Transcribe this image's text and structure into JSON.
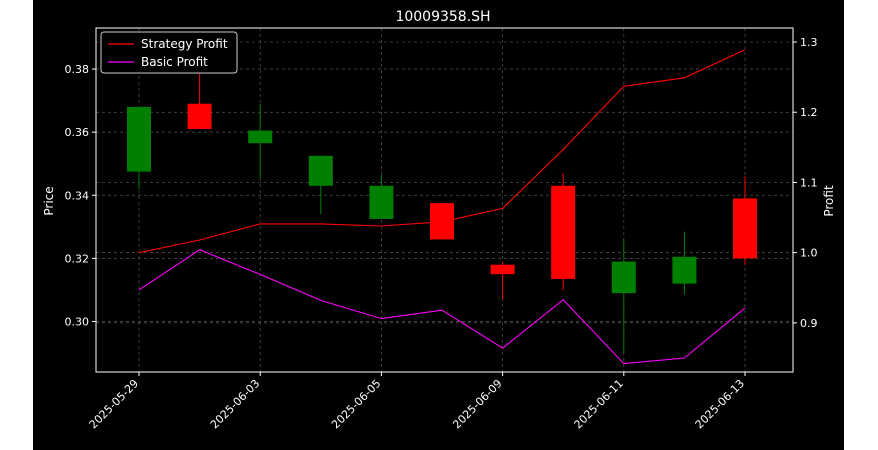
{
  "chart_data": {
    "type": "candlestick",
    "title": "10009358.SH",
    "xlabel": "",
    "ylabel": "Price",
    "y2label": "Profit",
    "ylim": [
      0.284,
      0.393
    ],
    "y2lim": [
      0.83,
      1.32
    ],
    "yticks": [
      0.3,
      0.32,
      0.34,
      0.36,
      0.38
    ],
    "y2ticks": [
      0.9,
      1.0,
      1.1,
      1.2,
      1.3
    ],
    "xticklabels": [
      "2025-05-29",
      "2025-06-03",
      "2025-06-05",
      "2025-06-09",
      "2025-06-11",
      "2025-06-13"
    ],
    "xtick_indices": [
      0,
      2,
      4,
      6,
      8,
      10
    ],
    "grid": true,
    "legend_position": "top-left",
    "candles": [
      {
        "open": 0.368,
        "close": 0.3475,
        "high": 0.368,
        "low": 0.342
      },
      {
        "open": 0.361,
        "close": 0.369,
        "high": 0.379,
        "low": 0.361
      },
      {
        "open": 0.3605,
        "close": 0.3565,
        "high": 0.369,
        "low": 0.3455
      },
      {
        "open": 0.3525,
        "close": 0.343,
        "high": 0.3525,
        "low": 0.334
      },
      {
        "open": 0.343,
        "close": 0.3325,
        "high": 0.3465,
        "low": 0.3325
      },
      {
        "open": 0.326,
        "close": 0.3375,
        "high": 0.3375,
        "low": 0.326
      },
      {
        "open": 0.315,
        "close": 0.318,
        "high": 0.319,
        "low": 0.307
      },
      {
        "open": 0.3135,
        "close": 0.343,
        "high": 0.347,
        "low": 0.31
      },
      {
        "open": 0.319,
        "close": 0.309,
        "high": 0.326,
        "low": 0.29
      },
      {
        "open": 0.3205,
        "close": 0.312,
        "high": 0.3285,
        "low": 0.3085
      },
      {
        "open": 0.32,
        "close": 0.339,
        "high": 0.346,
        "low": 0.318
      }
    ],
    "series": [
      {
        "name": "Strategy Profit",
        "color": "#ff0000",
        "axis": "right",
        "values": [
          1.0,
          null,
          1.041,
          null,
          1.038,
          null,
          1.063,
          null,
          1.237,
          null,
          1.289
        ]
      },
      {
        "name": "Basic Profit",
        "color": "#ff00ff",
        "axis": "right",
        "values": [
          0.947,
          null,
          0.969,
          null,
          0.906,
          null,
          0.864,
          null,
          0.842,
          null,
          0.921
        ]
      }
    ],
    "line_points": {
      "Strategy Profit": [
        [
          0,
          1.0
        ],
        [
          1,
          1.018
        ],
        [
          2,
          1.041
        ],
        [
          3,
          1.041
        ],
        [
          4,
          1.038
        ],
        [
          5,
          1.044
        ],
        [
          6,
          1.063
        ],
        [
          7,
          1.147
        ],
        [
          8,
          1.237
        ],
        [
          9,
          1.249
        ],
        [
          10,
          1.289
        ]
      ],
      "Basic Profit": [
        [
          0,
          0.947
        ],
        [
          1,
          1.004
        ],
        [
          2,
          0.969
        ],
        [
          3,
          0.932
        ],
        [
          4,
          0.906
        ],
        [
          5,
          0.918
        ],
        [
          6,
          0.864
        ],
        [
          7,
          0.933
        ],
        [
          8,
          0.842
        ],
        [
          9,
          0.85
        ],
        [
          10,
          0.921
        ]
      ]
    },
    "up_color": "#ff0000",
    "down_color": "#008000"
  }
}
